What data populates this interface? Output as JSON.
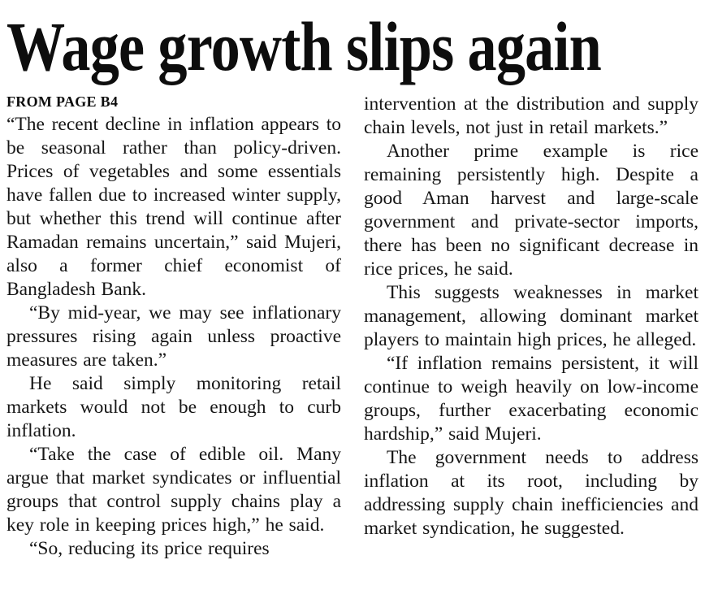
{
  "article": {
    "title": "Wage growth slips again",
    "continued_from": "FROM PAGE B4",
    "columns": [
      {
        "paragraphs": [
          "“The recent decline in inflation appears to be seasonal rather than policy-driven. Prices of vegetables and some essentials have fallen due to increased winter supply, but whether this trend will continue after Ramadan remains uncertain,” said Mujeri, also a former chief economist of Bangladesh Bank.",
          "“By mid-year, we may see inflationary pressures rising again unless proactive measures are taken.”",
          "He said simply monitoring retail markets would not be enough to curb inflation.",
          "“Take the case of edible oil. Many argue that market syndicates or influential groups that control supply chains play a key role in keeping prices high,” he said.",
          "“So, reducing its price requires"
        ]
      },
      {
        "paragraphs": [
          "intervention at the distribution and supply chain levels, not just in retail markets.”",
          "Another prime example is rice remaining persistently high. Despite a good Aman harvest and large-scale government and private-sector imports, there has been no significant decrease in rice prices, he said.",
          "This suggests weaknesses in market management, allowing dominant market players to maintain high prices, he alleged.",
          "“If inflation remains persistent, it will continue to weigh heavily on low-income groups, further exacerbating economic hardship,” said Mujeri.",
          "The government needs to address inflation at its root, including by addressing supply chain inefficiencies and market syndication, he suggested."
        ]
      }
    ]
  },
  "colors": {
    "text": "#161616",
    "headline": "#0d0d0d",
    "background": "#ffffff"
  }
}
